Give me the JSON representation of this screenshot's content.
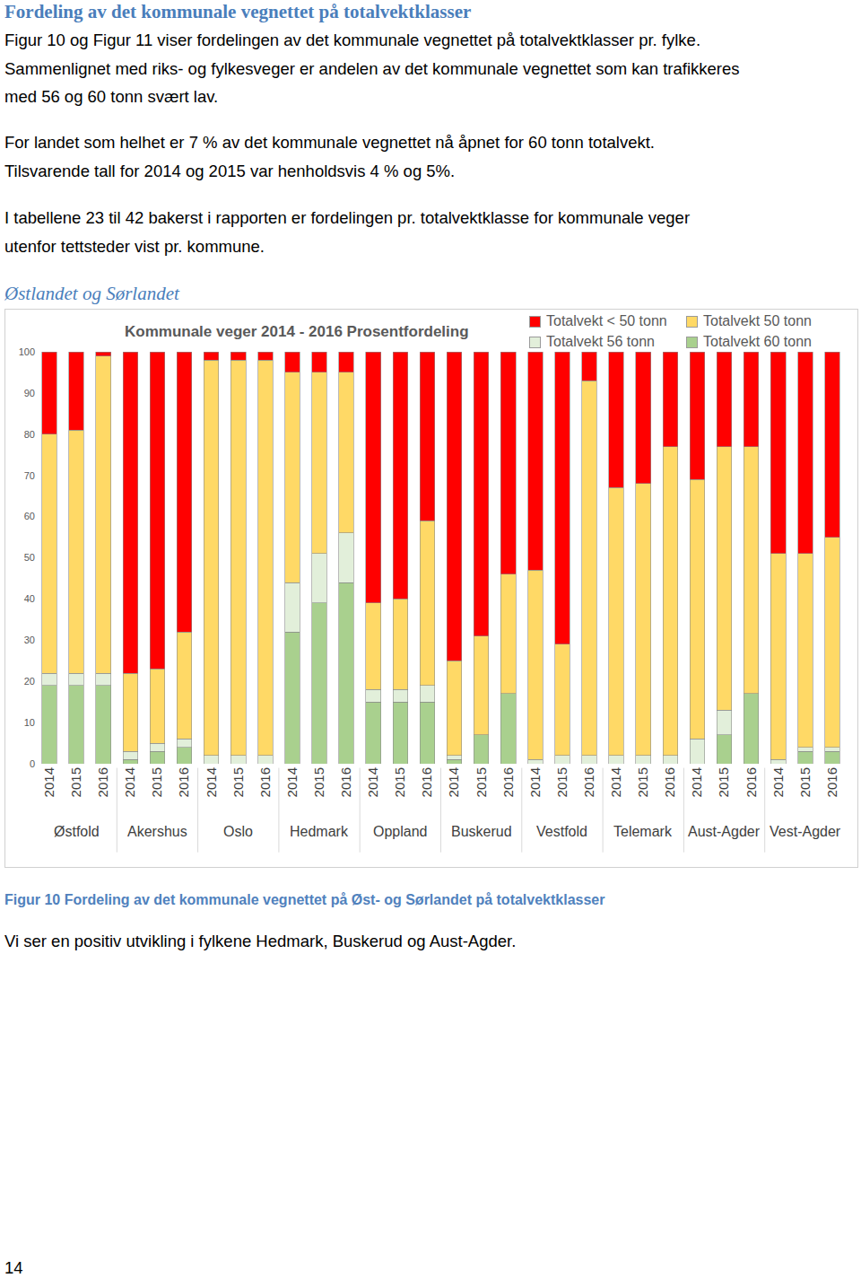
{
  "document": {
    "heading": "Fordeling av det kommunale vegnettet på totalvektklasser",
    "paragraphs": [
      [
        "Figur 10 og Figur 11 viser fordelingen av det kommunale vegnettet på totalvektklasser pr. fylke.",
        "Sammenlignet med riks- og fylkesveger er andelen av det kommunale vegnettet som kan trafikkeres",
        "med 56 og 60 tonn svært lav."
      ],
      [
        "For landet som helhet er 7 % av det kommunale vegnettet nå åpnet for 60 tonn totalvekt.",
        "Tilsvarende tall for 2014 og 2015 var henholdsvis 4 % og 5%."
      ],
      [
        "I tabellene 23 til 42 bakerst i rapporten er fordelingen pr. totalvektklasse for kommunale veger",
        "utenfor tettsteder vist pr. kommune."
      ]
    ],
    "subheading": "Østlandet og Sørlandet",
    "caption": "Figur 10 Fordeling av det kommunale vegnettet på Øst- og Sørlandet på totalvektklasser",
    "after_chart": "Vi ser en positiv utvikling i fylkene Hedmark, Buskerud og Aust-Agder.",
    "page_number": "14"
  },
  "chart_data": {
    "type": "bar",
    "title": "Kommunale veger 2014 - 2016 Prosentfordeling",
    "stacked": true,
    "grid": false,
    "legend": "top right",
    "categories": [
      "2014",
      "2015",
      "2016",
      "2014",
      "2015",
      "2016",
      "2014",
      "2015",
      "2016",
      "2014",
      "2015",
      "2016",
      "2014",
      "2015",
      "2016",
      "2014",
      "2015",
      "2016",
      "2014",
      "2015",
      "2016",
      "2014",
      "2015",
      "2016",
      "2014",
      "2015",
      "2016",
      "2014",
      "2015",
      "2016"
    ],
    "groups": [
      "Østfold",
      "Østfold",
      "Østfold",
      "Akershus",
      "Akershus",
      "Akershus",
      "Oslo",
      "Oslo",
      "Oslo",
      "Hedmark",
      "Hedmark",
      "Hedmark",
      "Oppland",
      "Oppland",
      "Oppland",
      "Buskerud",
      "Buskerud",
      "Buskerud",
      "Vestfold",
      "Vestfold",
      "Vestfold",
      "Telemark",
      "Telemark",
      "Telemark",
      "Aust-Agder",
      "Aust-Agder",
      "Aust-Agder",
      "Vest-Agder",
      "Vest-Agder",
      "Vest-Agder"
    ],
    "ylim": [
      0,
      100
    ],
    "yticks": [
      0,
      10,
      20,
      30,
      40,
      50,
      60,
      70,
      80,
      90,
      100
    ],
    "series": [
      {
        "name": "Totalvekt 60 tonn",
        "color": "#a9d08e",
        "values": [
          19,
          19,
          19,
          1,
          3,
          4,
          0,
          0,
          0,
          32,
          39,
          44,
          15,
          15,
          15,
          1,
          7,
          17,
          0,
          0,
          0,
          0,
          0,
          0,
          0,
          7,
          17,
          0,
          3,
          3
        ]
      },
      {
        "name": "Totalvekt 56 tonn",
        "color": "#e2efda",
        "values": [
          3,
          3,
          3,
          2,
          2,
          2,
          2,
          2,
          2,
          12,
          12,
          12,
          3,
          3,
          4,
          1,
          0,
          0,
          1,
          2,
          2,
          2,
          2,
          2,
          6,
          6,
          0,
          1,
          1,
          1
        ]
      },
      {
        "name": "Totalvekt 50 tonn",
        "color": "#ffd966",
        "values": [
          58,
          59,
          77,
          19,
          18,
          26,
          96,
          96,
          96,
          51,
          44,
          39,
          21,
          22,
          40,
          23,
          24,
          29,
          46,
          27,
          91,
          65,
          66,
          75,
          63,
          64,
          60,
          50,
          47,
          51
        ]
      },
      {
        "name": "Totalvekt < 50 tonn",
        "color": "#ff0000",
        "values": [
          20,
          19,
          1,
          78,
          77,
          68,
          2,
          2,
          2,
          5,
          5,
          5,
          61,
          60,
          41,
          75,
          69,
          54,
          53,
          71,
          7,
          33,
          32,
          23,
          31,
          23,
          23,
          49,
          49,
          45
        ]
      }
    ]
  }
}
